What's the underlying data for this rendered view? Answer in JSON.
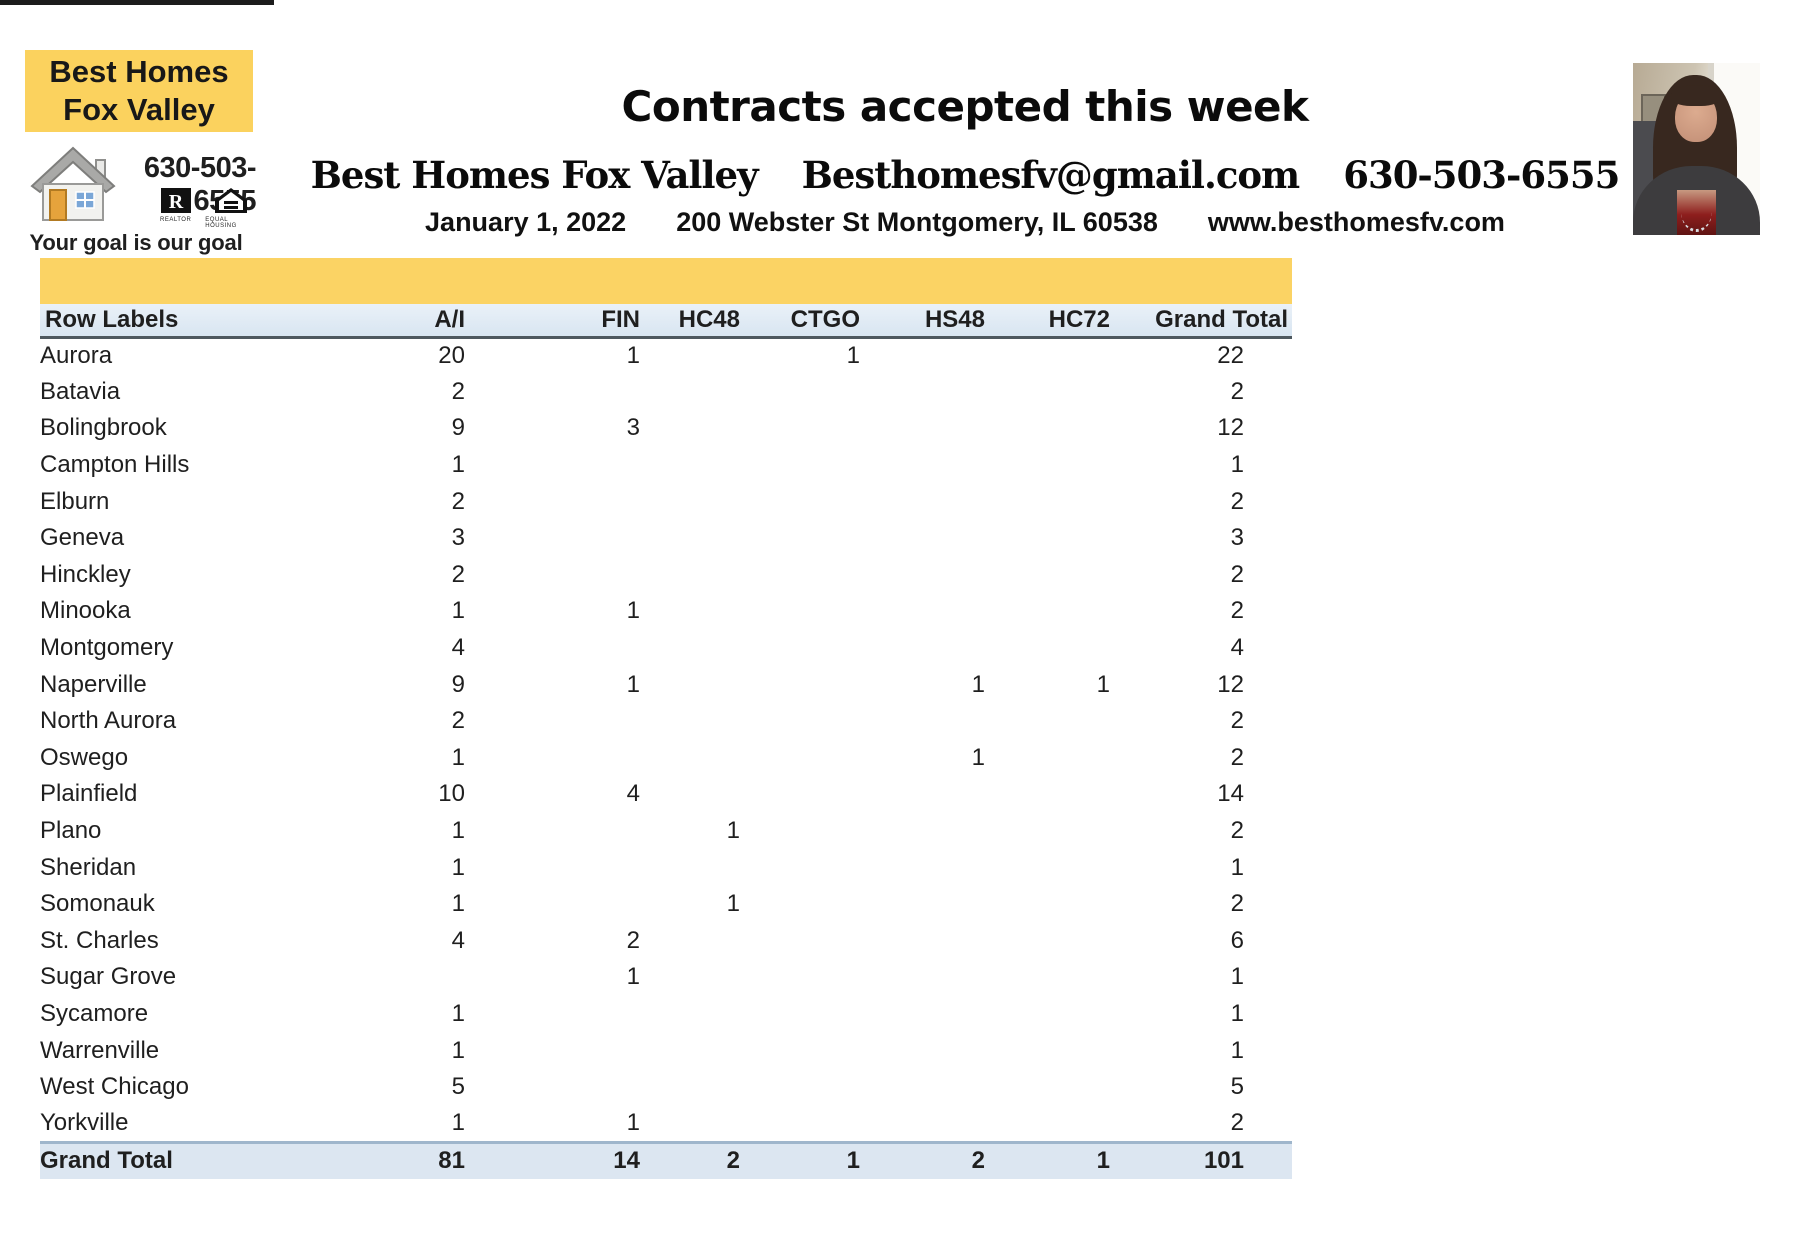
{
  "branding": {
    "logo_line1": "Best Homes",
    "logo_line2": "Fox Valley",
    "phone": "630-503-6555",
    "tagline": "Your goal is our goal",
    "realtor_caption": "REALTOR",
    "eho_caption": "EQUAL HOUSING"
  },
  "header": {
    "title": "Contracts accepted this week",
    "company": "Best Homes Fox Valley",
    "email": "Besthomesfv@gmail.com",
    "phone": "630-503-6555",
    "date": "January 1, 2022",
    "address": "200 Webster St Montgomery, IL 60538",
    "website": "www.besthomesfv.com"
  },
  "colors": {
    "brand_yellow": "#FBD364",
    "header_row_blue": "#DCE9F5",
    "total_row_blue": "#DCE6F1",
    "header_underline": "#4E585F",
    "total_border": "#9FB6CC",
    "text": "#1F1F1F"
  },
  "icons": {
    "house": "house-icon",
    "realtor": "realtor-r-icon",
    "equal_housing": "equal-housing-icon",
    "agent_photo": "agent-portrait-photo"
  },
  "table": {
    "columns": [
      "Row Labels",
      "A/I",
      "FIN",
      "HC48",
      "CTGO",
      "HS48",
      "HC72",
      "Grand Total"
    ],
    "rows": [
      {
        "label": "Aurora",
        "values": [
          "20",
          "1",
          "",
          "1",
          "",
          "",
          "22"
        ]
      },
      {
        "label": "Batavia",
        "values": [
          "2",
          "",
          "",
          "",
          "",
          "",
          "2"
        ]
      },
      {
        "label": "Bolingbrook",
        "values": [
          "9",
          "3",
          "",
          "",
          "",
          "",
          "12"
        ]
      },
      {
        "label": "Campton Hills",
        "values": [
          "1",
          "",
          "",
          "",
          "",
          "",
          "1"
        ]
      },
      {
        "label": "Elburn",
        "values": [
          "2",
          "",
          "",
          "",
          "",
          "",
          "2"
        ]
      },
      {
        "label": "Geneva",
        "values": [
          "3",
          "",
          "",
          "",
          "",
          "",
          "3"
        ]
      },
      {
        "label": "Hinckley",
        "values": [
          "2",
          "",
          "",
          "",
          "",
          "",
          "2"
        ]
      },
      {
        "label": "Minooka",
        "values": [
          "1",
          "1",
          "",
          "",
          "",
          "",
          "2"
        ]
      },
      {
        "label": "Montgomery",
        "values": [
          "4",
          "",
          "",
          "",
          "",
          "",
          "4"
        ]
      },
      {
        "label": "Naperville",
        "values": [
          "9",
          "1",
          "",
          "",
          "1",
          "1",
          "12"
        ]
      },
      {
        "label": "North Aurora",
        "values": [
          "2",
          "",
          "",
          "",
          "",
          "",
          "2"
        ]
      },
      {
        "label": "Oswego",
        "values": [
          "1",
          "",
          "",
          "",
          "1",
          "",
          "2"
        ]
      },
      {
        "label": "Plainfield",
        "values": [
          "10",
          "4",
          "",
          "",
          "",
          "",
          "14"
        ]
      },
      {
        "label": "Plano",
        "values": [
          "1",
          "",
          "1",
          "",
          "",
          "",
          "2"
        ]
      },
      {
        "label": "Sheridan",
        "values": [
          "1",
          "",
          "",
          "",
          "",
          "",
          "1"
        ]
      },
      {
        "label": "Somonauk",
        "values": [
          "1",
          "",
          "1",
          "",
          "",
          "",
          "2"
        ]
      },
      {
        "label": "St. Charles",
        "values": [
          "4",
          "2",
          "",
          "",
          "",
          "",
          "6"
        ]
      },
      {
        "label": "Sugar Grove",
        "values": [
          "",
          "1",
          "",
          "",
          "",
          "",
          "1"
        ]
      },
      {
        "label": "Sycamore",
        "values": [
          "1",
          "",
          "",
          "",
          "",
          "",
          "1"
        ]
      },
      {
        "label": "Warrenville",
        "values": [
          "1",
          "",
          "",
          "",
          "",
          "",
          "1"
        ]
      },
      {
        "label": "West Chicago",
        "values": [
          "5",
          "",
          "",
          "",
          "",
          "",
          "5"
        ]
      },
      {
        "label": "Yorkville",
        "values": [
          "1",
          "1",
          "",
          "",
          "",
          "",
          "2"
        ]
      }
    ],
    "grand_total": {
      "label": "Grand Total",
      "values": [
        "81",
        "14",
        "2",
        "1",
        "2",
        "1",
        "101"
      ]
    }
  }
}
